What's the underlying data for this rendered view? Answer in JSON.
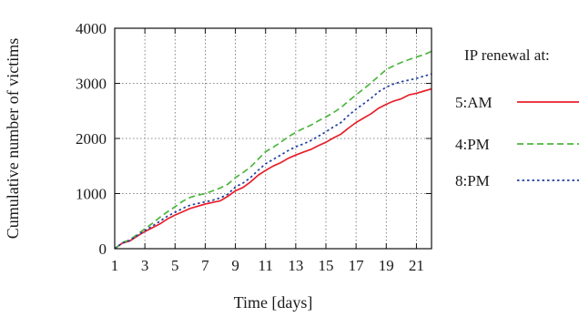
{
  "chart_data": {
    "type": "line",
    "xlabel": "Time [days]",
    "ylabel": "Cumulative number of victims",
    "xlim": [
      1,
      22
    ],
    "ylim": [
      0,
      4000
    ],
    "x_ticks": [
      1,
      3,
      5,
      7,
      9,
      11,
      13,
      15,
      17,
      19,
      21
    ],
    "y_ticks": [
      0,
      1000,
      2000,
      3000,
      4000
    ],
    "grid": true,
    "legend_title": "IP renewal at:",
    "legend_position": "right-outside",
    "x": [
      1,
      1.5,
      2,
      2.5,
      3,
      3.5,
      4,
      4.5,
      5,
      5.5,
      6,
      6.5,
      7,
      7.5,
      8,
      8.5,
      9,
      9.5,
      10,
      10.5,
      11,
      11.5,
      12,
      12.5,
      13,
      13.5,
      14,
      14.5,
      15,
      15.5,
      16,
      16.5,
      17,
      17.5,
      18,
      18.5,
      19,
      19.5,
      20,
      20.5,
      21,
      21.5,
      22
    ],
    "series": [
      {
        "name": "5:AM",
        "color": "#e8202a",
        "dash": "solid",
        "values": [
          0,
          100,
          140,
          230,
          310,
          380,
          450,
          540,
          610,
          670,
          730,
          770,
          810,
          840,
          870,
          950,
          1050,
          1110,
          1210,
          1330,
          1420,
          1500,
          1560,
          1640,
          1700,
          1750,
          1800,
          1870,
          1930,
          2010,
          2080,
          2190,
          2290,
          2370,
          2450,
          2550,
          2620,
          2680,
          2720,
          2790,
          2820,
          2860,
          2900
        ]
      },
      {
        "name": "4:PM",
        "color": "#4db53f",
        "dash": "dashed",
        "values": [
          0,
          110,
          160,
          260,
          360,
          460,
          570,
          670,
          760,
          860,
          930,
          970,
          1000,
          1050,
          1100,
          1170,
          1290,
          1380,
          1480,
          1620,
          1760,
          1840,
          1930,
          2030,
          2110,
          2180,
          2240,
          2320,
          2390,
          2470,
          2560,
          2680,
          2790,
          2900,
          3010,
          3130,
          3250,
          3320,
          3380,
          3430,
          3480,
          3520,
          3580
        ]
      },
      {
        "name": "8:PM",
        "color": "#1f3f9f",
        "dash": "dotted",
        "values": [
          0,
          100,
          150,
          240,
          330,
          410,
          500,
          590,
          660,
          730,
          790,
          820,
          850,
          880,
          920,
          990,
          1120,
          1190,
          1290,
          1420,
          1540,
          1620,
          1700,
          1780,
          1850,
          1900,
          1960,
          2040,
          2120,
          2210,
          2290,
          2420,
          2530,
          2630,
          2730,
          2850,
          2930,
          2990,
          3030,
          3060,
          3090,
          3130,
          3170
        ]
      }
    ]
  }
}
